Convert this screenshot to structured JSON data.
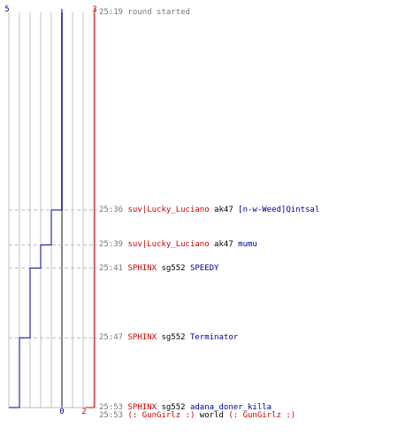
{
  "colors": {
    "team_red": "#cc0000",
    "team_blue": "#000099",
    "time": "#777777",
    "grid": "#c0c0c0",
    "grid_center": "#888888",
    "dash": "#bbbbbb"
  },
  "chart_data": {
    "type": "line",
    "y_time_range": [
      "25:19",
      "25:53"
    ],
    "x_ticks": [
      0,
      1,
      2,
      3,
      4,
      5,
      6,
      7,
      8
    ],
    "blue_team": {
      "start_label": "5",
      "end_label": "0",
      "steps": [
        {
          "time": "25:19",
          "value": 5
        },
        {
          "time": "25:36",
          "value": 4
        },
        {
          "time": "25:39",
          "value": 3
        },
        {
          "time": "25:41",
          "value": 2
        },
        {
          "time": "25:47",
          "value": 1
        },
        {
          "time": "25:53",
          "value": 0
        }
      ]
    },
    "red_team": {
      "start_label": "3",
      "end_label": "2",
      "steps": [
        {
          "time": "25:19",
          "value": 3
        },
        {
          "time": "25:53",
          "value": 2
        }
      ]
    }
  },
  "events": [
    {
      "time": "25:19",
      "type": "system",
      "text": "round started"
    },
    {
      "time": "25:36",
      "type": "kill",
      "killer": "suv|Lucky_Luciano",
      "weapon": "ak47",
      "victim": "[n-w-Weed]Qintsal"
    },
    {
      "time": "25:39",
      "type": "kill",
      "killer": "suv|Lucky_Luciano",
      "weapon": "ak47",
      "victim": "mumu"
    },
    {
      "time": "25:41",
      "type": "kill",
      "killer": "SPHINX",
      "weapon": "sg552",
      "victim": "SPEEDY"
    },
    {
      "time": "25:47",
      "type": "kill",
      "killer": "SPHINX",
      "weapon": "sg552",
      "victim": "Terminator"
    },
    {
      "time": "25:53",
      "type": "kill",
      "killer": "SPHINX",
      "weapon": "sg552",
      "victim": "adana_doner_killa"
    },
    {
      "time": "25:53",
      "type": "world",
      "killer": "(: GunGirlz :)",
      "weapon": "world",
      "victim": "(: GunGirlz :)"
    }
  ]
}
